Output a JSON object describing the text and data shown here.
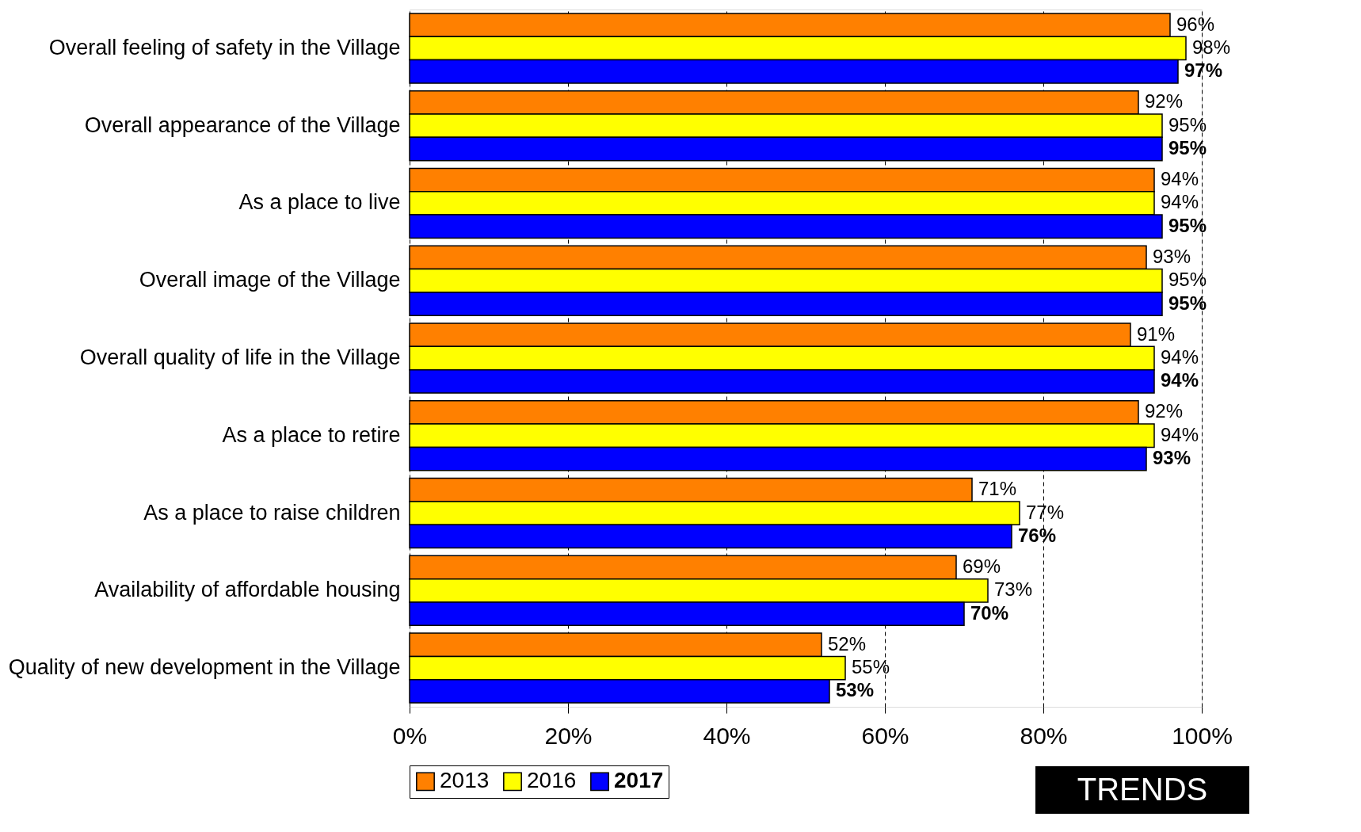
{
  "chart_data": {
    "type": "bar",
    "orientation": "horizontal",
    "categories": [
      "Overall feeling of safety in the Village",
      "Overall appearance of the Village",
      "As a place to live",
      "Overall image of the Village",
      "Overall quality of life in the Village",
      "As a place to retire",
      "As a place to raise children",
      "Availability of affordable housing",
      "Quality of new development in the Village"
    ],
    "series": [
      {
        "name": "2013",
        "color": "#ff8000",
        "values": [
          96,
          92,
          94,
          93,
          91,
          92,
          71,
          69,
          52
        ],
        "value_labels": [
          "96%",
          "92%",
          "94%",
          "93%",
          "91%",
          "92%",
          "71%",
          "69%",
          "52%"
        ]
      },
      {
        "name": "2016",
        "color": "#ffff00",
        "values": [
          98,
          95,
          94,
          95,
          94,
          94,
          77,
          73,
          55
        ],
        "value_labels": [
          "98%",
          "95%",
          "94%",
          "95%",
          "94%",
          "94%",
          "77%",
          "73%",
          "55%"
        ]
      },
      {
        "name": "2017",
        "color": "#0000ff",
        "values": [
          97,
          95,
          95,
          95,
          94,
          93,
          76,
          70,
          53
        ],
        "value_labels": [
          "97%",
          "95%",
          "95%",
          "95%",
          "94%",
          "93%",
          "76%",
          "70%",
          "53%"
        ]
      }
    ],
    "xlim": [
      0,
      100
    ],
    "xticks": [
      {
        "value": 0,
        "label": "0%"
      },
      {
        "value": 20,
        "label": "20%"
      },
      {
        "value": 40,
        "label": "40%"
      },
      {
        "value": 60,
        "label": "60%"
      },
      {
        "value": 80,
        "label": "80%"
      },
      {
        "value": 100,
        "label": "100%"
      }
    ],
    "grid": "x",
    "legend": "bottom",
    "annotations": [
      "TRENDS"
    ]
  }
}
